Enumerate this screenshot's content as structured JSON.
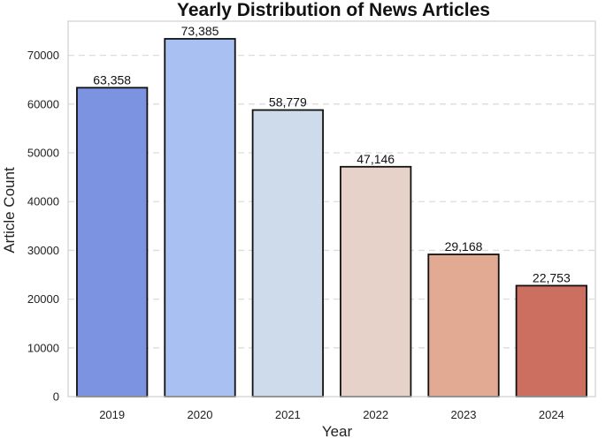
{
  "chart_data": {
    "type": "bar",
    "title": "Yearly Distribution of News Articles",
    "xlabel": "Year",
    "ylabel": "Article Count",
    "categories": [
      "2019",
      "2020",
      "2021",
      "2022",
      "2023",
      "2024"
    ],
    "values": [
      63358,
      73385,
      58779,
      47146,
      29168,
      22753
    ],
    "value_labels": [
      "63,358",
      "73,385",
      "58,779",
      "47,146",
      "29,168",
      "22,753"
    ],
    "bar_colors": [
      "#7b93e0",
      "#a8c0f2",
      "#cddbea",
      "#e6d2c8",
      "#e2aa93",
      "#cc6f61"
    ],
    "bar_edge_color": "#111111",
    "yticks": [
      0,
      10000,
      20000,
      30000,
      40000,
      50000,
      60000,
      70000
    ],
    "ytick_labels": [
      "0",
      "10000",
      "20000",
      "30000",
      "40000",
      "50000",
      "60000",
      "70000"
    ],
    "ylim": [
      0,
      77000
    ],
    "grid": "horizontal dashed",
    "legend": "none"
  }
}
